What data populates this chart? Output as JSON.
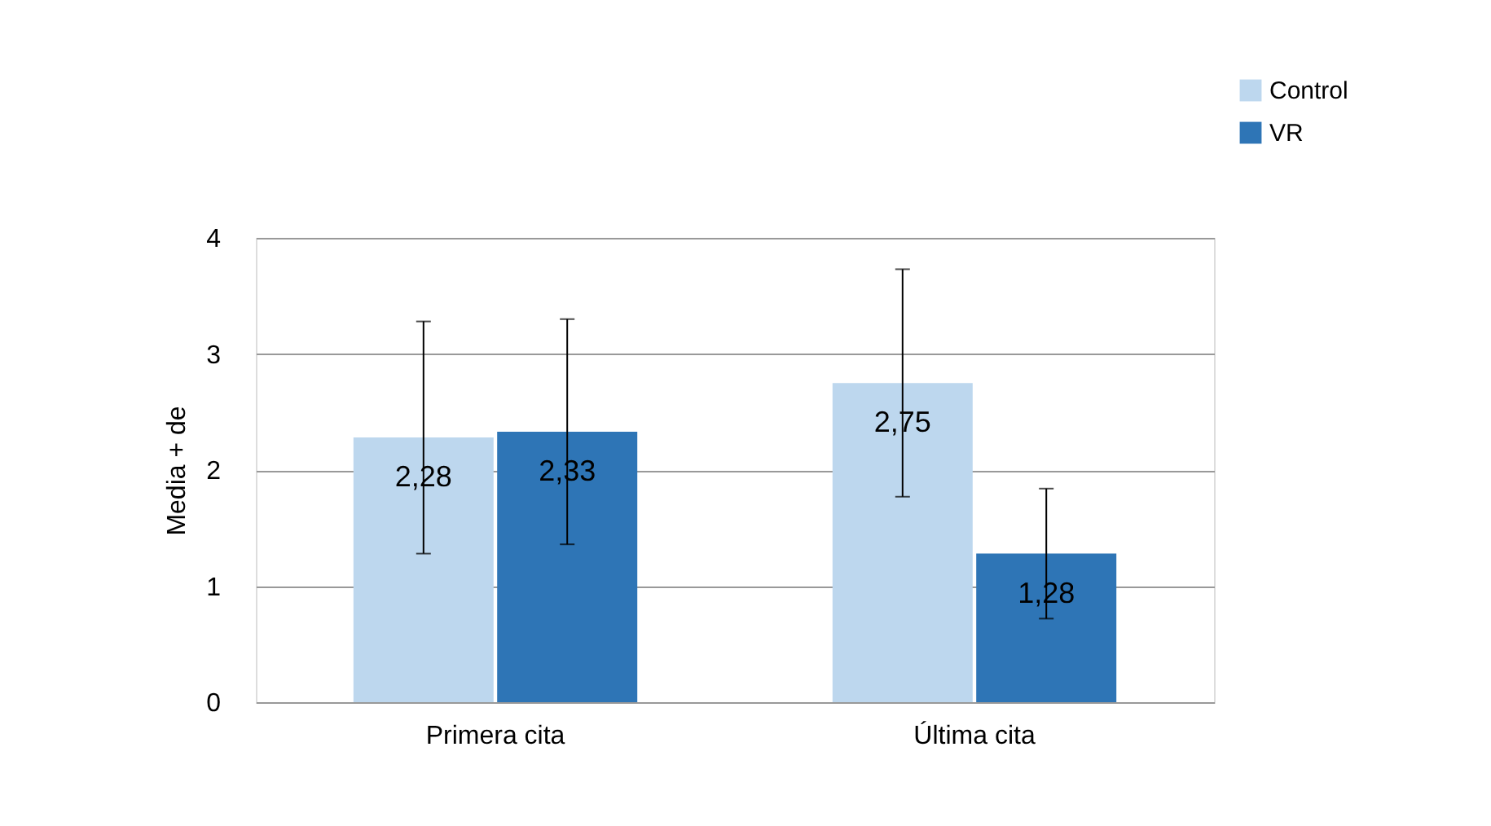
{
  "chart_data": {
    "type": "bar",
    "ylabel": "Media + de",
    "categories": [
      "Primera cita",
      "Última cita"
    ],
    "series": [
      {
        "name": "Control",
        "color": "#bdd7ee",
        "values": [
          2.28,
          2.75
        ],
        "errors": [
          1.0,
          0.98
        ],
        "value_labels": [
          "2,28",
          "2,75"
        ]
      },
      {
        "name": "VR",
        "color": "#2e75b6",
        "values": [
          2.33,
          1.28
        ],
        "errors": [
          0.97,
          0.56
        ],
        "value_labels": [
          "2,33",
          "1,28"
        ]
      }
    ],
    "ylim": [
      0,
      4
    ],
    "yticks": [
      0,
      1,
      2,
      3,
      4
    ],
    "grid": "y",
    "legend": "top right"
  }
}
